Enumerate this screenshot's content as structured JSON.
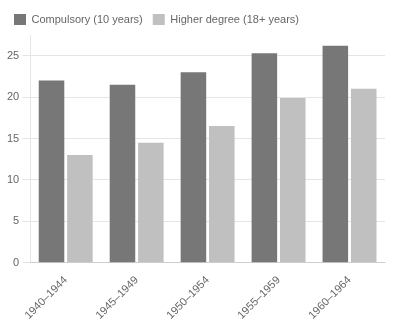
{
  "chart_data": {
    "type": "bar",
    "categories": [
      "1940–1944",
      "1945–1949",
      "1950–1954",
      "1955–1959",
      "1960–1964"
    ],
    "series": [
      {
        "name": "Compulsory (10 years)",
        "color": "#777777",
        "values": [
          22.0,
          21.5,
          23.0,
          25.3,
          26.2
        ]
      },
      {
        "name": "Higher degree (18+ years)",
        "color": "#c0c0c0",
        "values": [
          13.0,
          14.5,
          16.5,
          19.9,
          21.0
        ]
      }
    ],
    "ylim": [
      0,
      27.5
    ],
    "yticks": [
      0,
      5,
      10,
      15,
      20,
      25
    ],
    "grid": true,
    "legend": "upper left"
  }
}
